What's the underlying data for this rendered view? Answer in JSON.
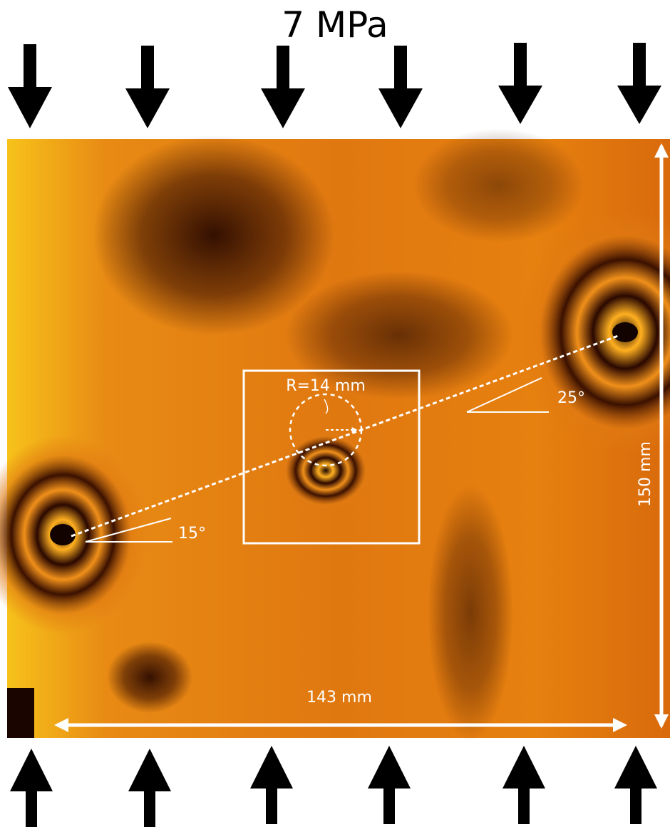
{
  "title": "7 MPa",
  "annotations": {
    "radius": "R=14 mm",
    "angle_right": "25°",
    "angle_left": "15°",
    "height": "150 mm",
    "width": "143 mm"
  }
}
